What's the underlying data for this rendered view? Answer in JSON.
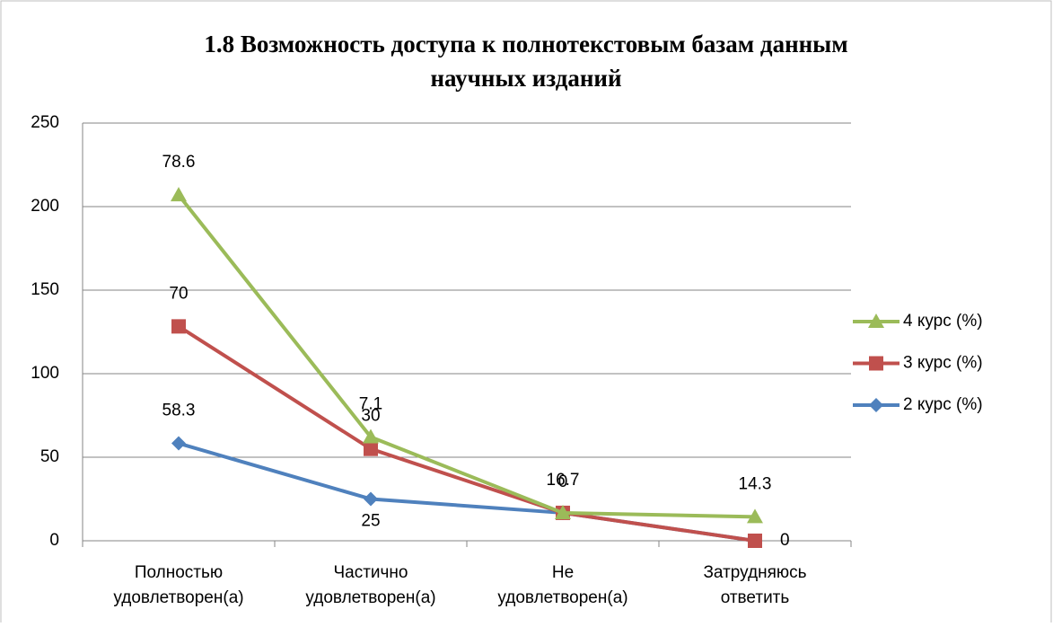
{
  "chart_data": {
    "type": "line",
    "stacked": true,
    "title": [
      "1.8 Возможность доступа к полнотекстовым базам данным",
      "научных изданий"
    ],
    "categories": [
      [
        "Полностью",
        "удовлетворен(а)"
      ],
      [
        "Частично",
        "удовлетворен(а)"
      ],
      [
        "Не",
        "удовлетворен(а)"
      ],
      [
        "Затрудняюсь",
        "ответить"
      ]
    ],
    "series": [
      {
        "name": "2 курс (%)",
        "color": "#4f81bd",
        "marker": "diamond",
        "values": [
          58.3,
          25,
          16.7,
          0
        ],
        "value_labels": [
          "58.3",
          "25",
          "16.7",
          null
        ]
      },
      {
        "name": "3 курс (%)",
        "color": "#c0504d",
        "marker": "square",
        "values": [
          70,
          30,
          0,
          0
        ],
        "value_labels": [
          "70",
          "30",
          "0",
          "0"
        ]
      },
      {
        "name": "4 курс (%)",
        "color": "#9bbb59",
        "marker": "triangle",
        "values": [
          78.6,
          7.1,
          0,
          14.3
        ],
        "value_labels": [
          "78.6",
          "7.1",
          null,
          "14.3"
        ]
      }
    ],
    "ylim": [
      0,
      250
    ],
    "yticks": [
      0,
      50,
      100,
      150,
      200,
      250
    ],
    "grid": true,
    "legend": "right"
  }
}
